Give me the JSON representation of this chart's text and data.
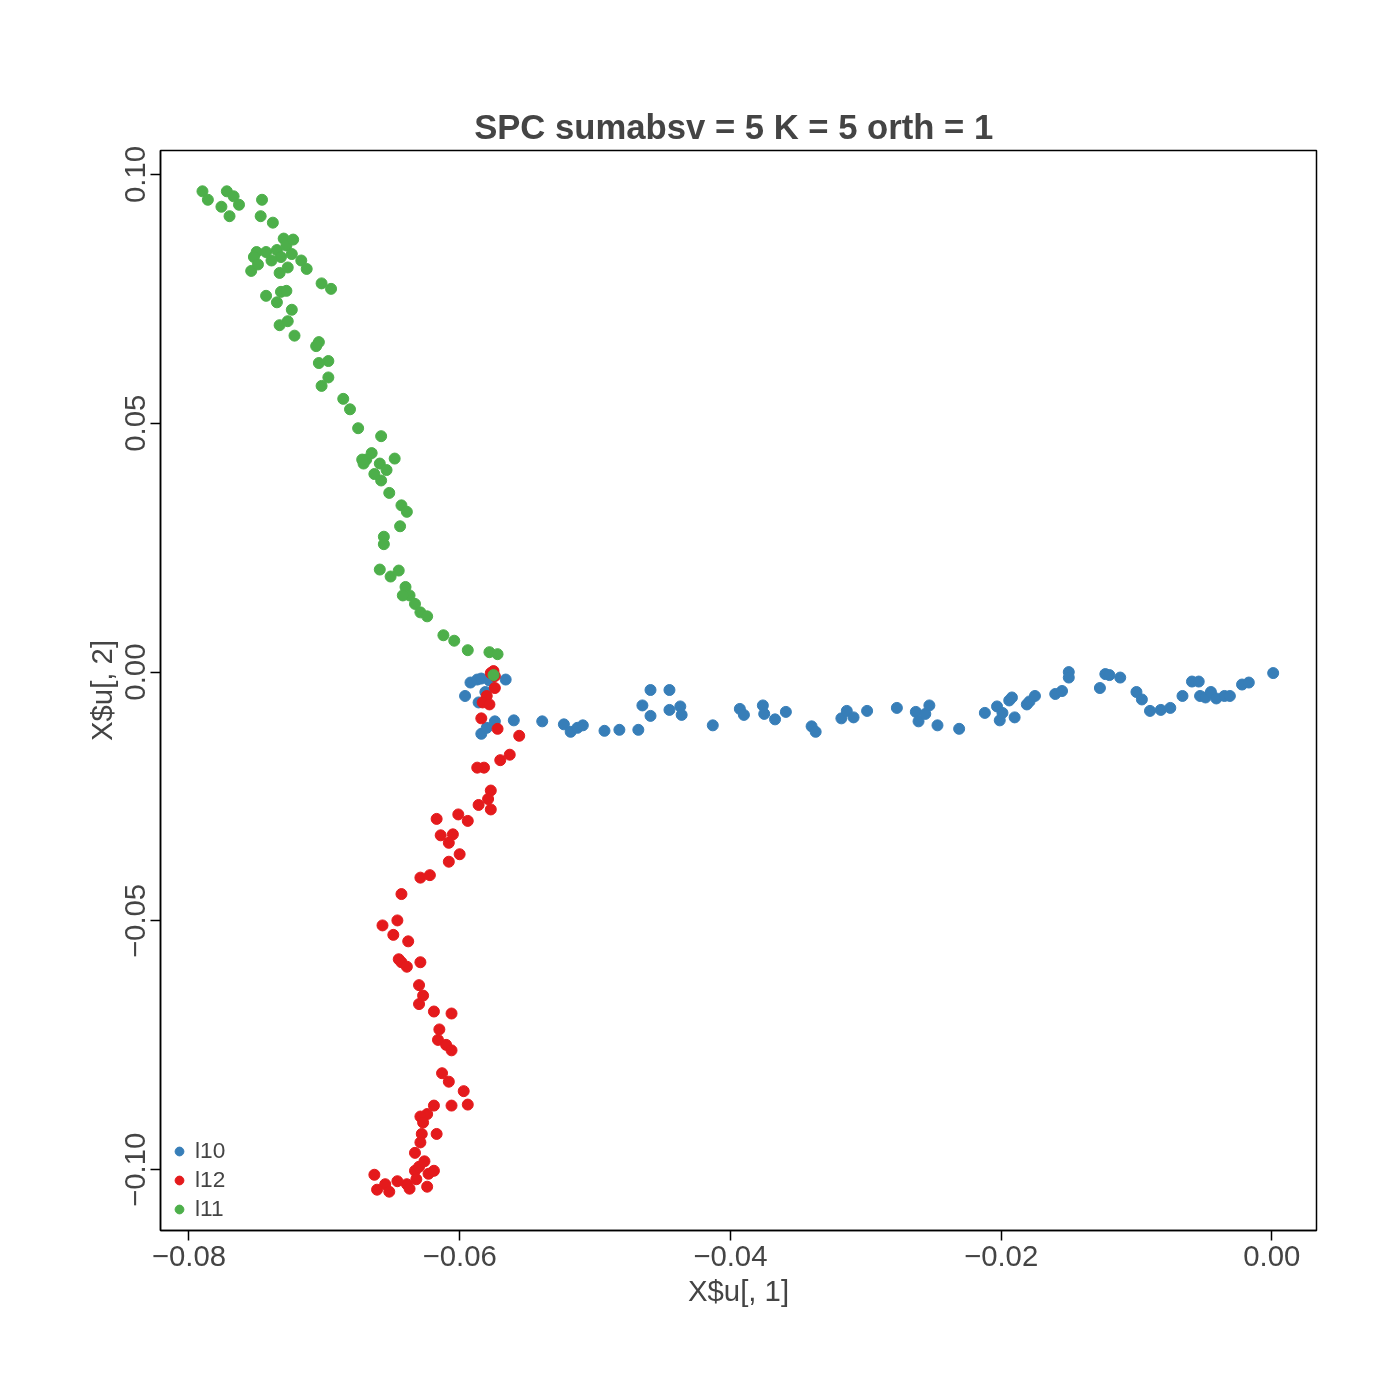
{
  "chart_data": {
    "type": "scatter",
    "title": "SPC sumabsv = 5 K = 5 orth =  1",
    "xlabel": "X$u[, 1]",
    "ylabel": "X$u[, 2]",
    "xlim": [
      -0.0821,
      0.0033
    ],
    "ylim": [
      -0.1122,
      0.1048
    ],
    "xticks": [
      {
        "value": -0.08,
        "label": "−0.08"
      },
      {
        "value": -0.06,
        "label": "−0.06"
      },
      {
        "value": -0.04,
        "label": "−0.04"
      },
      {
        "value": -0.02,
        "label": "−0.02"
      },
      {
        "value": 0,
        "label": "0.00"
      }
    ],
    "yticks": [
      {
        "value": -0.1,
        "label": "−0.10"
      },
      {
        "value": -0.05,
        "label": "−0.05"
      },
      {
        "value": 0,
        "label": "0.00"
      },
      {
        "value": 0.05,
        "label": "0.05"
      },
      {
        "value": 0.1,
        "label": "0.10"
      }
    ],
    "grid": false,
    "legend": "bottom left",
    "marker": "circle",
    "series": [
      {
        "name": "l10",
        "color": "#377eb8",
        "x": [
          -0.0596,
          -0.0592,
          -0.0587,
          -0.0584,
          -0.0578,
          -0.0566,
          -0.0581,
          -0.0586,
          -0.0584,
          -0.058,
          -0.0574,
          -0.056,
          -0.0539,
          -0.0523,
          -0.0518,
          -0.0513,
          -0.0509,
          -0.0493,
          -0.0482,
          -0.0468,
          -0.0465,
          -0.0459,
          -0.0459,
          -0.0445,
          -0.0445,
          -0.0437,
          -0.0436,
          -0.0413,
          -0.0393,
          -0.039,
          -0.0376,
          -0.0375,
          -0.0367,
          -0.0359,
          -0.034,
          -0.0337,
          -0.0318,
          -0.0314,
          -0.0309,
          -0.0299,
          -0.0277,
          -0.0263,
          -0.0261,
          -0.0256,
          -0.0253,
          -0.0247,
          -0.0231,
          -0.0212,
          -0.0201,
          -0.0203,
          -0.0199,
          -0.0194,
          -0.019,
          -0.0192,
          -0.0181,
          -0.0179,
          -0.0175,
          -0.016,
          -0.0155,
          -0.015,
          -0.015,
          -0.0127,
          -0.0123,
          -0.012,
          -0.0112,
          -0.01,
          -0.0096,
          -0.009,
          -0.0082,
          -0.0075,
          -0.0066,
          -0.0059,
          -0.0054,
          -0.0053,
          -0.0049,
          -0.0045,
          -0.0041,
          -0.0035,
          -0.0031,
          -0.0022,
          -0.0017,
          0.0001
        ],
        "values": [
          -0.0048,
          -0.0021,
          -0.0015,
          -0.0013,
          -0.0017,
          -0.0015,
          -0.004,
          -0.0061,
          -0.0124,
          -0.0112,
          -0.0099,
          -0.0097,
          -0.0099,
          -0.0105,
          -0.012,
          -0.0112,
          -0.0107,
          -0.0118,
          -0.0116,
          -0.0116,
          -0.0067,
          -0.0036,
          -0.0088,
          -0.0036,
          -0.0076,
          -0.0069,
          -0.0086,
          -0.0107,
          -0.0074,
          -0.0086,
          -0.0067,
          -0.0084,
          -0.0095,
          -0.008,
          -0.0109,
          -0.012,
          -0.0093,
          -0.0078,
          -0.0091,
          -0.0078,
          -0.0072,
          -0.008,
          -0.0099,
          -0.0084,
          -0.0067,
          -0.0107,
          -0.0114,
          -0.0082,
          -0.0097,
          -0.0069,
          -0.0082,
          -0.0057,
          -0.0091,
          -0.0051,
          -0.0065,
          -0.0059,
          -0.0048,
          -0.0044,
          -0.0038,
          0.0,
          -0.0011,
          -0.0032,
          -0.0004,
          -0.0006,
          -0.0011,
          -0.004,
          -0.0055,
          -0.0078,
          -0.0076,
          -0.0072,
          -0.0048,
          -0.0019,
          -0.0019,
          -0.0048,
          -0.0051,
          -0.004,
          -0.0053,
          -0.0048,
          -0.0048,
          -0.0025,
          -0.0021,
          -0.0002
        ]
      },
      {
        "name": "l12",
        "color": "#e41a1c",
        "x": [
          -0.0575,
          -0.0577,
          -0.0574,
          -0.058,
          -0.0583,
          -0.0584,
          -0.0578,
          -0.0574,
          -0.0572,
          -0.0556,
          -0.0563,
          -0.057,
          -0.0582,
          -0.0587,
          -0.0577,
          -0.0579,
          -0.0586,
          -0.0577,
          -0.0601,
          -0.0617,
          -0.0594,
          -0.0614,
          -0.0605,
          -0.0608,
          -0.06,
          -0.0608,
          -0.0622,
          -0.0629,
          -0.0643,
          -0.0657,
          -0.0646,
          -0.0649,
          -0.0638,
          -0.0643,
          -0.0629,
          -0.0645,
          -0.0639,
          -0.063,
          -0.0627,
          -0.063,
          -0.0606,
          -0.0619,
          -0.0615,
          -0.0616,
          -0.061,
          -0.0606,
          -0.0613,
          -0.0608,
          -0.0597,
          -0.0606,
          -0.0594,
          -0.0619,
          -0.0624,
          -0.0629,
          -0.0627,
          -0.0617,
          -0.0628,
          -0.0629,
          -0.0633,
          -0.0633,
          -0.063,
          -0.0623,
          -0.0632,
          -0.0624,
          -0.0639,
          -0.0637,
          -0.0646,
          -0.0655,
          -0.0663,
          -0.0661,
          -0.0652,
          -0.0619,
          -0.0626
        ],
        "values": [
          0.0002,
          -0.0002,
          -0.0008,
          -0.0048,
          -0.0061,
          -0.0093,
          -0.0065,
          -0.0032,
          -0.0114,
          -0.0128,
          -0.0166,
          -0.0177,
          -0.0192,
          -0.0192,
          -0.0238,
          -0.0255,
          -0.0267,
          -0.0276,
          -0.0286,
          -0.0295,
          -0.0299,
          -0.0328,
          -0.0326,
          -0.0343,
          -0.0366,
          -0.0381,
          -0.0408,
          -0.0413,
          -0.0446,
          -0.0509,
          -0.0499,
          -0.0528,
          -0.0541,
          -0.0583,
          -0.0583,
          -0.0577,
          -0.0592,
          -0.0629,
          -0.065,
          -0.0667,
          -0.0686,
          -0.0682,
          -0.0718,
          -0.0739,
          -0.0749,
          -0.076,
          -0.0806,
          -0.0823,
          -0.0842,
          -0.0871,
          -0.0869,
          -0.0871,
          -0.0888,
          -0.0893,
          -0.0905,
          -0.0928,
          -0.0928,
          -0.0945,
          -0.0966,
          -0.1002,
          -0.0994,
          -0.1008,
          -0.1019,
          -0.1034,
          -0.1029,
          -0.1038,
          -0.1023,
          -0.1029,
          -0.101,
          -0.104,
          -0.1044,
          -0.1002,
          -0.0983
        ]
      },
      {
        "name": "l11",
        "color": "#4daf4a",
        "x": [
          -0.079,
          -0.0786,
          -0.0772,
          -0.0767,
          -0.0763,
          -0.0776,
          -0.077,
          -0.0746,
          -0.0747,
          -0.0738,
          -0.075,
          -0.0752,
          -0.0743,
          -0.0735,
          -0.073,
          -0.0728,
          -0.0723,
          -0.0732,
          -0.0739,
          -0.0754,
          -0.0749,
          -0.0724,
          -0.0717,
          -0.0713,
          -0.0733,
          -0.0727,
          -0.0702,
          -0.0695,
          -0.0743,
          -0.0732,
          -0.0728,
          -0.0735,
          -0.0724,
          -0.0733,
          -0.0727,
          -0.0722,
          -0.0704,
          -0.0706,
          -0.0697,
          -0.0704,
          -0.0697,
          -0.0702,
          -0.0686,
          -0.0681,
          -0.0675,
          -0.0658,
          -0.0665,
          -0.0669,
          -0.0671,
          -0.0672,
          -0.0659,
          -0.0648,
          -0.0663,
          -0.0654,
          -0.0658,
          -0.0652,
          -0.0643,
          -0.0639,
          -0.0644,
          -0.0656,
          -0.0656,
          -0.0659,
          -0.0651,
          -0.0645,
          -0.064,
          -0.0637,
          -0.0642,
          -0.0633,
          -0.0629,
          -0.0624,
          -0.0612,
          -0.0604,
          -0.0594,
          -0.0578,
          -0.0572,
          -0.0575
        ],
        "values": [
          0.0966,
          0.0949,
          0.0966,
          0.0956,
          0.0939,
          0.0935,
          0.0916,
          0.0949,
          0.0916,
          0.0903,
          0.0844,
          0.0834,
          0.0844,
          0.0848,
          0.0871,
          0.0857,
          0.0869,
          0.0834,
          0.0827,
          0.0806,
          0.0819,
          0.084,
          0.0827,
          0.081,
          0.0802,
          0.0813,
          0.0781,
          0.077,
          0.0756,
          0.0764,
          0.0766,
          0.0743,
          0.0728,
          0.0697,
          0.0705,
          0.0676,
          0.0663,
          0.0655,
          0.0625,
          0.0621,
          0.0592,
          0.0575,
          0.0549,
          0.0528,
          0.049,
          0.0474,
          0.044,
          0.0427,
          0.0419,
          0.0427,
          0.0419,
          0.0429,
          0.0398,
          0.0406,
          0.0385,
          0.036,
          0.0335,
          0.0322,
          0.0293,
          0.0272,
          0.0257,
          0.0206,
          0.0192,
          0.0204,
          0.0171,
          0.0154,
          0.0154,
          0.0137,
          0.012,
          0.0112,
          0.0074,
          0.0063,
          0.0044,
          0.004,
          0.0036,
          -0.0006
        ]
      }
    ]
  }
}
